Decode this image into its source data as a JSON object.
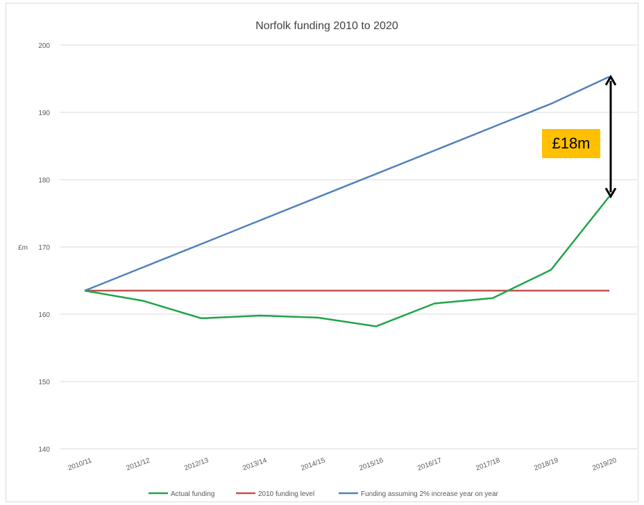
{
  "chart_data": {
    "type": "line",
    "title": "Norfolk funding 2010 to 2020",
    "ylabel": "£m",
    "xlabel": "",
    "ylim": [
      140,
      200
    ],
    "yticks": [
      140,
      150,
      160,
      170,
      180,
      190,
      200
    ],
    "categories": [
      "2010/11",
      "2011/12",
      "2012/13",
      "2013/14",
      "2014/15",
      "2015/16",
      "2016/17",
      "2017/18",
      "2018/19",
      "2019/20"
    ],
    "grid": true,
    "legend_position": "bottom",
    "series": [
      {
        "name": "Actual funding",
        "color": "#1fa34a",
        "values": [
          163.5,
          162.0,
          159.4,
          159.8,
          159.5,
          158.2,
          161.6,
          162.4,
          166.6,
          177.5
        ]
      },
      {
        "name": "2010 funding level",
        "color": "#c0504d",
        "values": [
          163.5,
          163.5,
          163.5,
          163.5,
          163.5,
          163.5,
          163.5,
          163.5,
          163.5,
          163.5
        ]
      },
      {
        "name": "Funding assuming 2% increase year on year",
        "color": "#4f81bd",
        "values": [
          163.5,
          166.97,
          170.44,
          173.92,
          177.39,
          180.86,
          184.33,
          187.81,
          191.28,
          195.3
        ]
      }
    ],
    "annotation": {
      "label": "£18m",
      "from": 195.3,
      "to": 177.5,
      "color": "#ffc000"
    }
  }
}
